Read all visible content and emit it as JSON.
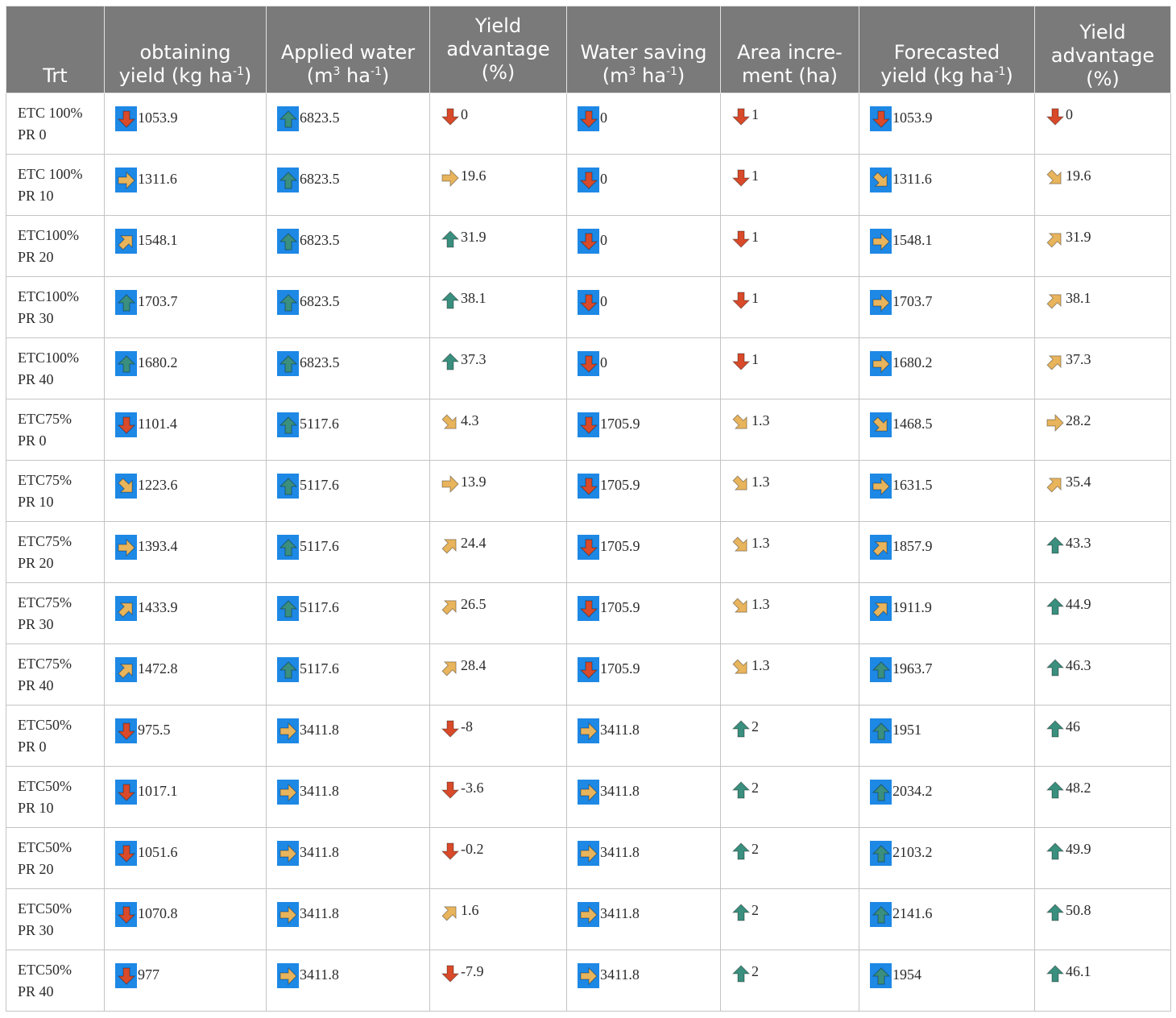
{
  "table": {
    "headers": [
      {
        "text": "Trt",
        "unit_pre": "",
        "sup1": "",
        "mid": "",
        "sup2": "",
        "unit_post": ""
      },
      {
        "text": "obtaining",
        "unit_pre": "yield (kg ha",
        "sup1": "-1",
        "mid": "",
        "sup2": "",
        "unit_post": ")"
      },
      {
        "text": "Applied water",
        "unit_pre": "(m",
        "sup1": "3",
        "mid": " ha",
        "sup2": "-1",
        "unit_post": ")"
      },
      {
        "text": "Yield advantage (%)",
        "unit_pre": "",
        "sup1": "",
        "mid": "",
        "sup2": "",
        "unit_post": ""
      },
      {
        "text": "Water saving",
        "unit_pre": "(m",
        "sup1": "3",
        "mid": " ha",
        "sup2": "-1",
        "unit_post": ")"
      },
      {
        "text": "Area incre-ment (ha)",
        "unit_pre": "",
        "sup1": "",
        "mid": "",
        "sup2": "",
        "unit_post": ""
      },
      {
        "text": "Forecasted",
        "unit_pre": "yield  (kg ha",
        "sup1": "-1",
        "mid": "",
        "sup2": "",
        "unit_post": ")"
      },
      {
        "text": "Yield advantage (%)",
        "unit_pre": "",
        "sup1": "",
        "mid": "",
        "sup2": "",
        "unit_post": ""
      }
    ],
    "rows": [
      {
        "trt": [
          "ETC 100%",
          "PR 0"
        ],
        "cells": [
          [
            "down",
            "1053.9"
          ],
          [
            "up",
            "6823.5"
          ],
          [
            "down",
            "0"
          ],
          [
            "down",
            "0"
          ],
          [
            "down",
            "1"
          ],
          [
            "down",
            "1053.9"
          ],
          [
            "down",
            "0"
          ]
        ]
      },
      {
        "trt": [
          "ETC 100%",
          "PR 10"
        ],
        "cells": [
          [
            "right",
            "1311.6"
          ],
          [
            "up",
            "6823.5"
          ],
          [
            "right",
            "19.6"
          ],
          [
            "down",
            "0"
          ],
          [
            "down",
            "1"
          ],
          [
            "down-right",
            "1311.6"
          ],
          [
            "down-right",
            "19.6"
          ]
        ]
      },
      {
        "trt": [
          "ETC100%",
          "PR 20"
        ],
        "cells": [
          [
            "up-right",
            "1548.1"
          ],
          [
            "up",
            "6823.5"
          ],
          [
            "up",
            "31.9"
          ],
          [
            "down",
            "0"
          ],
          [
            "down",
            "1"
          ],
          [
            "right",
            "1548.1"
          ],
          [
            "up-right",
            "31.9"
          ]
        ]
      },
      {
        "trt": [
          "ETC100%",
          "PR 30"
        ],
        "cells": [
          [
            "up",
            "1703.7"
          ],
          [
            "up",
            "6823.5"
          ],
          [
            "up",
            "38.1"
          ],
          [
            "down",
            "0"
          ],
          [
            "down",
            "1"
          ],
          [
            "right",
            "1703.7"
          ],
          [
            "up-right",
            "38.1"
          ]
        ]
      },
      {
        "trt": [
          "ETC100%",
          "PR 40"
        ],
        "cells": [
          [
            "up",
            "1680.2"
          ],
          [
            "up",
            "6823.5"
          ],
          [
            "up",
            "37.3"
          ],
          [
            "down",
            "0"
          ],
          [
            "down",
            "1"
          ],
          [
            "right",
            "1680.2"
          ],
          [
            "up-right",
            "37.3"
          ]
        ]
      },
      {
        "trt": [
          "ETC75%",
          "PR 0"
        ],
        "cells": [
          [
            "down",
            "1101.4"
          ],
          [
            "up",
            "5117.6"
          ],
          [
            "down-right",
            "4.3"
          ],
          [
            "down",
            "1705.9"
          ],
          [
            "down-right",
            "1.3"
          ],
          [
            "down-right",
            "1468.5"
          ],
          [
            "right",
            "28.2"
          ]
        ]
      },
      {
        "trt": [
          "ETC75%",
          "PR 10"
        ],
        "cells": [
          [
            "down-right",
            "1223.6"
          ],
          [
            "up",
            "5117.6"
          ],
          [
            "right",
            "13.9"
          ],
          [
            "down",
            "1705.9"
          ],
          [
            "down-right",
            "1.3"
          ],
          [
            "right",
            "1631.5"
          ],
          [
            "up-right",
            "35.4"
          ]
        ]
      },
      {
        "trt": [
          "ETC75%",
          "PR 20"
        ],
        "cells": [
          [
            "right",
            "1393.4"
          ],
          [
            "up",
            "5117.6"
          ],
          [
            "up-right",
            "24.4"
          ],
          [
            "down",
            "1705.9"
          ],
          [
            "down-right",
            "1.3"
          ],
          [
            "up-right",
            "1857.9"
          ],
          [
            "up",
            "43.3"
          ]
        ]
      },
      {
        "trt": [
          "ETC75%",
          "PR 30"
        ],
        "cells": [
          [
            "up-right",
            "1433.9"
          ],
          [
            "up",
            "5117.6"
          ],
          [
            "up-right",
            "26.5"
          ],
          [
            "down",
            "1705.9"
          ],
          [
            "down-right",
            "1.3"
          ],
          [
            "up-right",
            "1911.9"
          ],
          [
            "up",
            "44.9"
          ]
        ]
      },
      {
        "trt": [
          "ETC75%",
          "PR 40"
        ],
        "cells": [
          [
            "up-right",
            "1472.8"
          ],
          [
            "up",
            "5117.6"
          ],
          [
            "up-right",
            "28.4"
          ],
          [
            "down",
            "1705.9"
          ],
          [
            "down-right",
            "1.3"
          ],
          [
            "up",
            "1963.7"
          ],
          [
            "up",
            "46.3"
          ]
        ]
      },
      {
        "trt": [
          "ETC50%",
          "PR 0"
        ],
        "cells": [
          [
            "down",
            "975.5"
          ],
          [
            "right",
            "3411.8"
          ],
          [
            "down",
            "-8"
          ],
          [
            "right",
            "3411.8"
          ],
          [
            "up",
            "2"
          ],
          [
            "up",
            "1951"
          ],
          [
            "up",
            "46"
          ]
        ]
      },
      {
        "trt": [
          "ETC50%",
          "PR 10"
        ],
        "cells": [
          [
            "down",
            "1017.1"
          ],
          [
            "right",
            "3411.8"
          ],
          [
            "down",
            "-3.6"
          ],
          [
            "right",
            "3411.8"
          ],
          [
            "up",
            "2"
          ],
          [
            "up",
            "2034.2"
          ],
          [
            "up",
            "48.2"
          ]
        ]
      },
      {
        "trt": [
          "ETC50%",
          "PR 20"
        ],
        "cells": [
          [
            "down",
            "1051.6"
          ],
          [
            "right",
            "3411.8"
          ],
          [
            "down",
            "-0.2"
          ],
          [
            "right",
            "3411.8"
          ],
          [
            "up",
            "2"
          ],
          [
            "up",
            "2103.2"
          ],
          [
            "up",
            "49.9"
          ]
        ]
      },
      {
        "trt": [
          "ETC50%",
          "PR 30"
        ],
        "cells": [
          [
            "down",
            "1070.8"
          ],
          [
            "right",
            "3411.8"
          ],
          [
            "up-right",
            "1.6"
          ],
          [
            "right",
            "3411.8"
          ],
          [
            "up",
            "2"
          ],
          [
            "up",
            "2141.6"
          ],
          [
            "up",
            "50.8"
          ]
        ]
      },
      {
        "trt": [
          "ETC50%",
          "PR 40"
        ],
        "cells": [
          [
            "down",
            "977"
          ],
          [
            "right",
            "3411.8"
          ],
          [
            "down",
            "-7.9"
          ],
          [
            "right",
            "3411.8"
          ],
          [
            "up",
            "2"
          ],
          [
            "up",
            "1954"
          ],
          [
            "up",
            "46.1"
          ]
        ]
      }
    ],
    "boxed_columns": [
      true,
      true,
      false,
      true,
      false,
      true,
      false
    ],
    "icon_colors": {
      "up": "#3a8f7e",
      "up-right": "#e8b45c",
      "right": "#e8b45c",
      "down-right": "#e8b45c",
      "down": "#d84a2a",
      "icon_box": "#1e88e5"
    }
  }
}
